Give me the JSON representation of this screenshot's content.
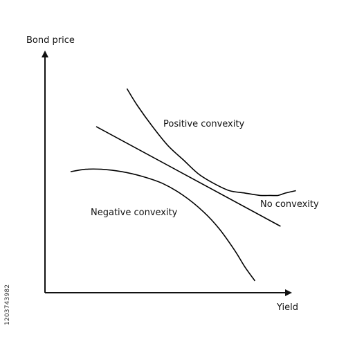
{
  "chart_data": {
    "type": "line",
    "title": "",
    "xlabel": "Yield",
    "ylabel": "Bond price",
    "grid": false,
    "legend": "none",
    "series": [
      {
        "name": "Positive convexity",
        "x": [
          0.32,
          0.36,
          0.42,
          0.48,
          0.54,
          0.6,
          0.66,
          0.72,
          0.78,
          0.84,
          0.88,
          0.91,
          0.94,
          0.98
        ],
        "y": [
          0.86,
          0.79,
          0.7,
          0.62,
          0.56,
          0.5,
          0.46,
          0.43,
          0.42,
          0.41,
          0.41,
          0.41,
          0.42,
          0.43
        ]
      },
      {
        "name": "No convexity",
        "x": [
          0.2,
          0.92
        ],
        "y": [
          0.7,
          0.28
        ]
      },
      {
        "name": "Negative convexity",
        "x": [
          0.1,
          0.16,
          0.22,
          0.3,
          0.38,
          0.46,
          0.54,
          0.62,
          0.68,
          0.74,
          0.78,
          0.82
        ],
        "y": [
          0.51,
          0.52,
          0.52,
          0.51,
          0.49,
          0.46,
          0.41,
          0.34,
          0.27,
          0.18,
          0.11,
          0.05
        ]
      }
    ],
    "annotations": {
      "positive": "Positive convexity",
      "none": "No convexity",
      "negative": "Negative convexity"
    },
    "line_color": "#000000"
  },
  "stock_id": "1203743982"
}
